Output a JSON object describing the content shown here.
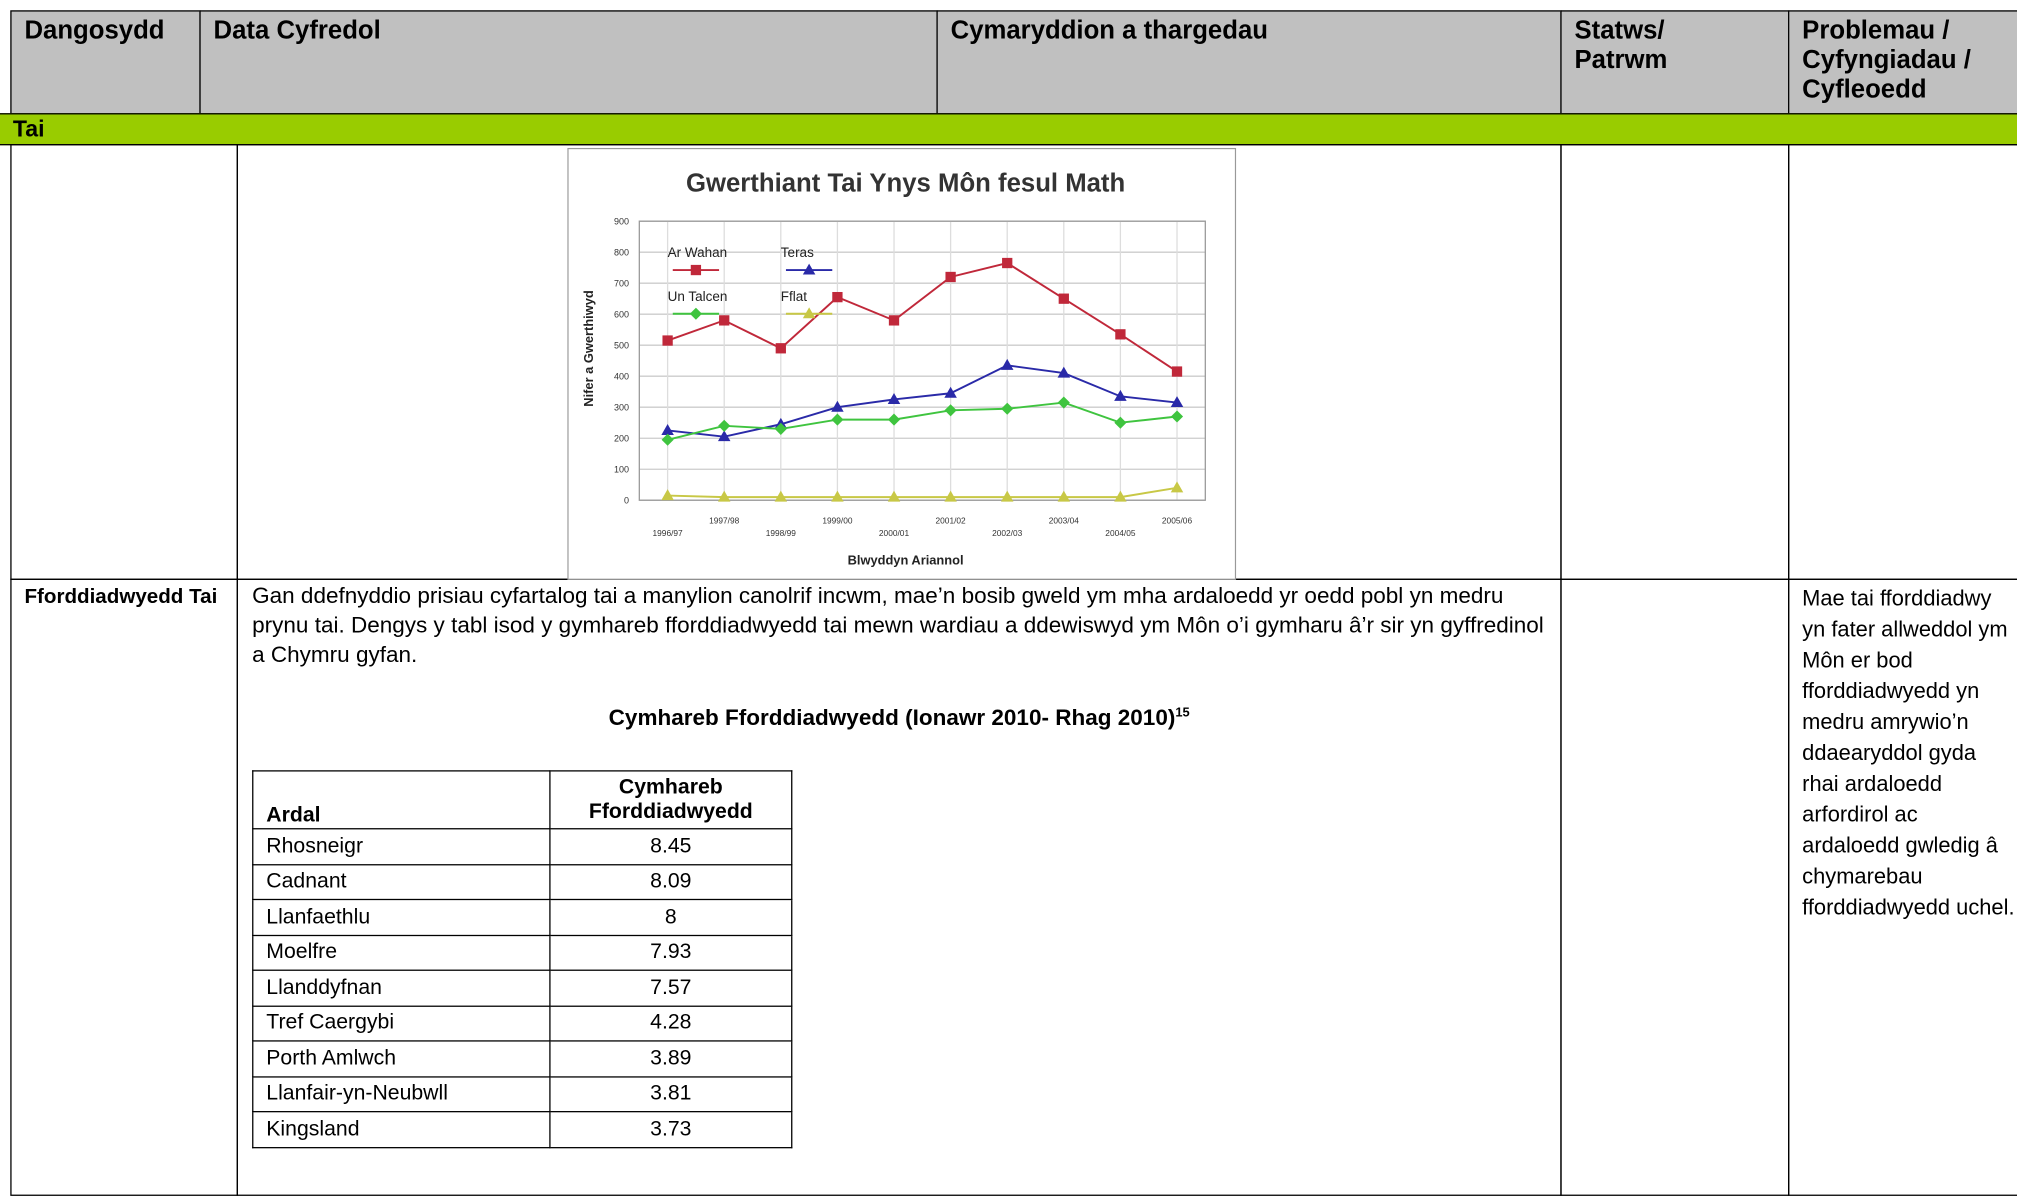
{
  "header": [
    "Dangosydd",
    "Data Cyfredol",
    "Cymaryddion a thargedau",
    "Statws/ Patrwm",
    "Problemau / Cyfyngiadau / Cyfleoedd"
  ],
  "section": "Tai",
  "chart_data": {
    "type": "line",
    "title": "Gwerthiant Tai Ynys Môn fesul Math",
    "x_label": "Blwyddyn Ariannol",
    "y_label": "Nifer a Gwerthiwyd",
    "categories": [
      "1996/97",
      "1997/98",
      "1998/99",
      "1999/00",
      "2000/01",
      "2001/02",
      "2002/03",
      "2003/04",
      "2004/05",
      "2005/06"
    ],
    "series": [
      {
        "name": "Ar Wahan",
        "color": "#c0283a",
        "marker": "square",
        "values": [
          515,
          580,
          490,
          655,
          580,
          720,
          765,
          650,
          535,
          415
        ]
      },
      {
        "name": "Teras",
        "color": "#2a2aa8",
        "marker": "triangle",
        "values": [
          225,
          205,
          245,
          300,
          325,
          345,
          435,
          410,
          335,
          315
        ]
      },
      {
        "name": "Un Talcen",
        "color": "#3fc43f",
        "marker": "diamond",
        "values": [
          195,
          240,
          230,
          260,
          260,
          290,
          295,
          315,
          250,
          270
        ]
      },
      {
        "name": "Fflat",
        "color": "#c8c846",
        "marker": "triangle",
        "values": [
          15,
          10,
          10,
          10,
          10,
          10,
          10,
          10,
          10,
          40
        ]
      }
    ],
    "ylim": [
      0,
      900
    ],
    "yticks": [
      0,
      100,
      200,
      300,
      400,
      500,
      600,
      700,
      800,
      900
    ],
    "grid": true
  },
  "row": {
    "indicator": "Fforddiadwyedd Tai",
    "paragraph": "Gan ddefnyddio prisiau cyfartalog tai a manylion canolrif incwm, mae’n bosib gweld ym mha ardaloedd yr oedd pobl yn medru prynu tai. Dengys y tabl isod y gymhareb fforddiadwyedd tai mewn wardiau a ddewiswyd ym Môn o’i gymharu â’r sir yn gyffredinol a Chymru gyfan.",
    "table_title": "Cymhareb Fforddiadwyedd (Ionawr 2010- Rhag 2010)",
    "footnote": "15",
    "table": {
      "columns": [
        "Ardal",
        "Cymhareb Fforddiadwyedd"
      ],
      "rows": [
        [
          "Rhosneigr",
          8.45
        ],
        [
          "Cadnant",
          8.09
        ],
        [
          "Llanfaethlu",
          8
        ],
        [
          "Moelfre",
          7.93
        ],
        [
          "Llanddyfnan",
          7.57
        ],
        [
          "Tref Caergybi",
          4.28
        ],
        [
          "Porth Amlwch",
          3.89
        ],
        [
          "Llanfair-yn-Neubwll",
          3.81
        ],
        [
          "Kingsland",
          3.73
        ]
      ]
    },
    "problems": "Mae tai fforddiadwy yn fater allweddol ym Môn er bod fforddiadwyedd yn medru amrywio’n ddaearyddol gyda rhai ardaloedd arfordirol ac ardaloedd gwledig â chymarebau fforddiadwyedd uchel."
  }
}
